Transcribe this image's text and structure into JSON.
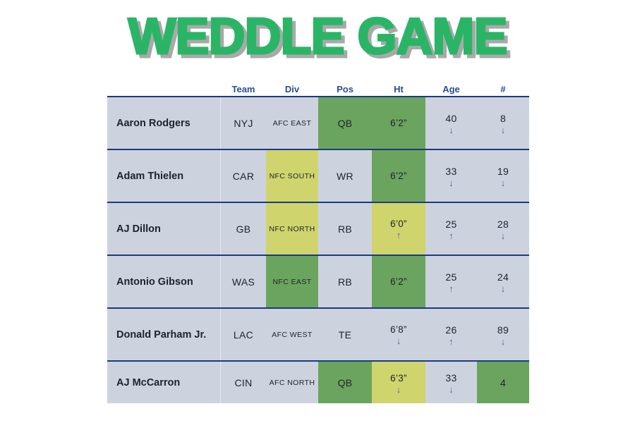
{
  "title": "WEDDLE GAME",
  "colors": {
    "title_green": "#2ab566",
    "title_shadow": "#a9a9a9",
    "match_green": "#6ba45e",
    "close_yellow": "#cfd46c",
    "miss_gray": "#ccd3de",
    "border_navy": "#1b3a80",
    "header_text": "#2a4b9b",
    "cell_text": "#1d222e",
    "arrow_purple": "#7b4f93"
  },
  "table": {
    "headers": [
      "Team",
      "Div",
      "Pos",
      "Ht",
      "Age",
      "#"
    ],
    "rows": [
      {
        "name": "Aaron Rodgers",
        "cells": [
          {
            "value": "NYJ",
            "state": "miss",
            "arrow": ""
          },
          {
            "value": "AFC EAST",
            "state": "miss",
            "arrow": ""
          },
          {
            "value": "QB",
            "state": "match",
            "arrow": ""
          },
          {
            "value": "6’2”",
            "state": "match",
            "arrow": ""
          },
          {
            "value": "40",
            "state": "miss",
            "arrow": "↓"
          },
          {
            "value": "8",
            "state": "miss",
            "arrow": "↓"
          }
        ]
      },
      {
        "name": "Adam Thielen",
        "cells": [
          {
            "value": "CAR",
            "state": "miss",
            "arrow": ""
          },
          {
            "value": "NFC SOUTH",
            "state": "close",
            "arrow": ""
          },
          {
            "value": "WR",
            "state": "miss",
            "arrow": ""
          },
          {
            "value": "6’2”",
            "state": "match",
            "arrow": ""
          },
          {
            "value": "33",
            "state": "miss",
            "arrow": "↓"
          },
          {
            "value": "19",
            "state": "miss",
            "arrow": "↓"
          }
        ]
      },
      {
        "name": "AJ Dillon",
        "cells": [
          {
            "value": "GB",
            "state": "miss",
            "arrow": ""
          },
          {
            "value": "NFC NORTH",
            "state": "close",
            "arrow": ""
          },
          {
            "value": "RB",
            "state": "miss",
            "arrow": ""
          },
          {
            "value": "6’0”",
            "state": "close",
            "arrow": "↑"
          },
          {
            "value": "25",
            "state": "miss",
            "arrow": "↑"
          },
          {
            "value": "28",
            "state": "miss",
            "arrow": "↓"
          }
        ]
      },
      {
        "name": "Antonio Gibson",
        "cells": [
          {
            "value": "WAS",
            "state": "miss",
            "arrow": ""
          },
          {
            "value": "NFC EAST",
            "state": "match",
            "arrow": ""
          },
          {
            "value": "RB",
            "state": "miss",
            "arrow": ""
          },
          {
            "value": "6’2”",
            "state": "match",
            "arrow": ""
          },
          {
            "value": "25",
            "state": "miss",
            "arrow": "↑"
          },
          {
            "value": "24",
            "state": "miss",
            "arrow": "↓"
          }
        ]
      },
      {
        "name": "Donald Parham Jr.",
        "cells": [
          {
            "value": "LAC",
            "state": "miss",
            "arrow": ""
          },
          {
            "value": "AFC WEST",
            "state": "miss",
            "arrow": ""
          },
          {
            "value": "TE",
            "state": "miss",
            "arrow": ""
          },
          {
            "value": "6’8”",
            "state": "miss",
            "arrow": "↓"
          },
          {
            "value": "26",
            "state": "miss",
            "arrow": "↑"
          },
          {
            "value": "89",
            "state": "miss",
            "arrow": "↓"
          }
        ]
      },
      {
        "name": "AJ McCarron",
        "cells": [
          {
            "value": "CIN",
            "state": "miss",
            "arrow": ""
          },
          {
            "value": "AFC NORTH",
            "state": "miss",
            "arrow": ""
          },
          {
            "value": "QB",
            "state": "match",
            "arrow": ""
          },
          {
            "value": "6’3”",
            "state": "close",
            "arrow": "↓"
          },
          {
            "value": "33",
            "state": "miss",
            "arrow": "↓"
          },
          {
            "value": "4",
            "state": "match",
            "arrow": ""
          }
        ]
      }
    ]
  }
}
